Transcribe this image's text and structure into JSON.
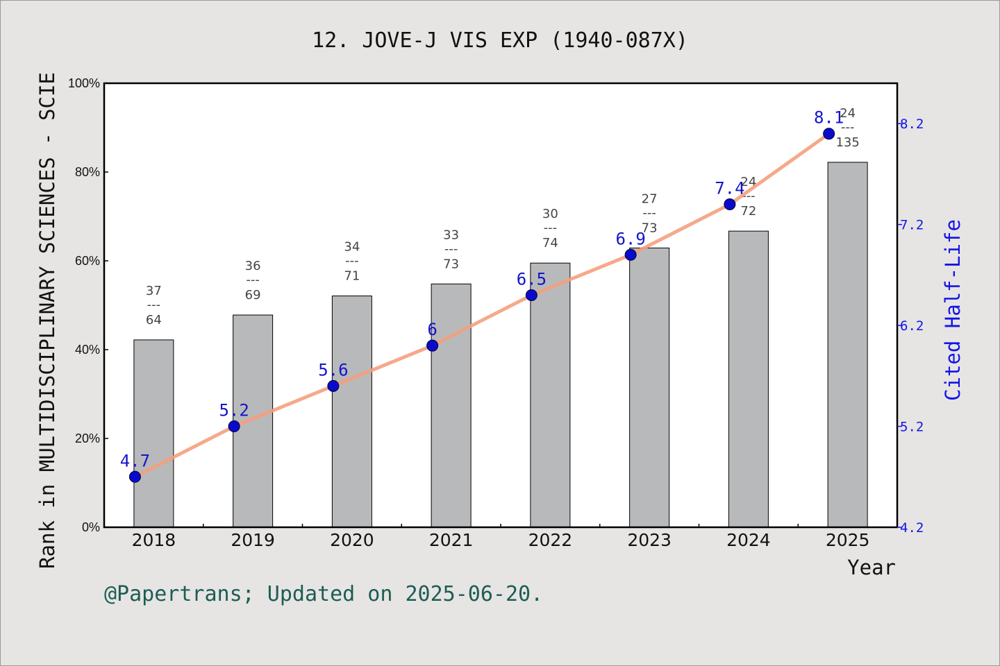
{
  "chart_data": {
    "type": "bar+line",
    "title": "12. JOVE-J VIS EXP (1940-087X)",
    "xlabel": "Year",
    "ylabel": "Rank in MULTIDISCIPLINARY SCIENCES - SCIE",
    "y2label": "Cited Half-Life",
    "categories": [
      "2018",
      "2019",
      "2020",
      "2021",
      "2022",
      "2023",
      "2024",
      "2025"
    ],
    "ylim": [
      0,
      100
    ],
    "yticks": [
      "0%",
      "20%",
      "40%",
      "60%",
      "80%",
      "100%"
    ],
    "y2lim": [
      4.2,
      8.6
    ],
    "y2ticks": [
      "4.2",
      "5.2",
      "6.2",
      "7.2",
      "8.2"
    ],
    "bars": {
      "values": [
        42.2,
        47.8,
        52.1,
        54.8,
        59.5,
        62.9,
        66.7,
        82.2
      ],
      "ranks": [
        "37",
        "36",
        "34",
        "33",
        "30",
        "27",
        "24",
        "24"
      ],
      "totals": [
        "64",
        "69",
        "71",
        "73",
        "74",
        "73",
        "72",
        "135"
      ],
      "color": "#b8b9bb"
    },
    "line": {
      "values": [
        4.7,
        5.2,
        5.6,
        6,
        6.5,
        6.9,
        7.4,
        8.1
      ],
      "labels": [
        "4.7",
        "5.2",
        "5.6",
        "6",
        "6.5",
        "6.9",
        "7.4",
        "8.1"
      ],
      "line_color": "#f4a07e",
      "marker_color": "#0a0acc"
    },
    "credit": "@Papertrans; Updated on 2025-06-20."
  }
}
